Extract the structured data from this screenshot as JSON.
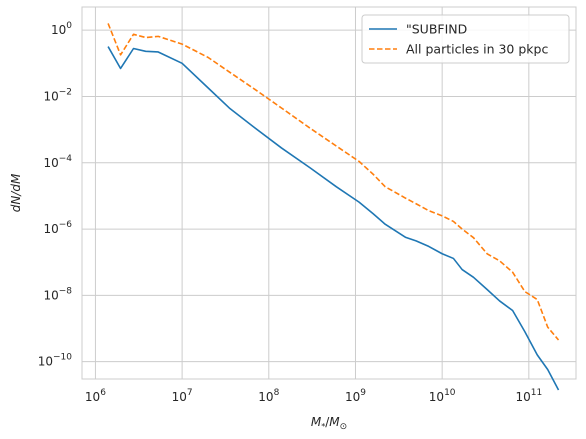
{
  "chart_data": {
    "type": "line",
    "xlabel": "M_*/M_⊙",
    "ylabel": "dN/dM",
    "x_scale": "log",
    "y_scale": "log",
    "xlim": [
      700000,
      350000000000
    ],
    "ylim": [
      3e-11,
      5
    ],
    "grid": true,
    "legend_position": "top-right",
    "x_ticks": [
      {
        "value": 1000000,
        "base": "10",
        "exp": "6"
      },
      {
        "value": 10000000,
        "base": "10",
        "exp": "7"
      },
      {
        "value": 100000000,
        "base": "10",
        "exp": "8"
      },
      {
        "value": 1000000000,
        "base": "10",
        "exp": "9"
      },
      {
        "value": 10000000000,
        "base": "10",
        "exp": "10"
      },
      {
        "value": 100000000000,
        "base": "10",
        "exp": "11"
      }
    ],
    "y_ticks": [
      {
        "value": 1,
        "base": "10",
        "exp": "0"
      },
      {
        "value": 0.01,
        "base": "10",
        "exp": "−2"
      },
      {
        "value": 0.0001,
        "base": "10",
        "exp": "−4"
      },
      {
        "value": 1e-06,
        "base": "10",
        "exp": "−6"
      },
      {
        "value": 1e-08,
        "base": "10",
        "exp": "−8"
      },
      {
        "value": 1e-10,
        "base": "10",
        "exp": "−10"
      }
    ],
    "series": [
      {
        "name": "\"SUBFIND",
        "color": "#1f77b4",
        "style": "solid",
        "points": [
          [
            1400000,
            0.32
          ],
          [
            1950000,
            0.07
          ],
          [
            2750000,
            0.28
          ],
          [
            3800000,
            0.23
          ],
          [
            5300000,
            0.22
          ],
          [
            10000000,
            0.1
          ],
          [
            20000000,
            0.018
          ],
          [
            35000000,
            0.0045
          ],
          [
            70000000,
            0.0011
          ],
          [
            140000000,
            0.00028
          ],
          [
            300000000,
            7e-05
          ],
          [
            600000000,
            1.9e-05
          ],
          [
            1100000000,
            6.5e-06
          ],
          [
            1600000000,
            2.9e-06
          ],
          [
            2200000000,
            1.4e-06
          ],
          [
            3800000000,
            5.6e-07
          ],
          [
            5000000000,
            4.4e-07
          ],
          [
            7000000000,
            3e-07
          ],
          [
            10000000000,
            1.8e-07
          ],
          [
            13500000000,
            1.3e-07
          ],
          [
            17000000000,
            6e-08
          ],
          [
            23000000000,
            3.5e-08
          ],
          [
            33000000000,
            1.5e-08
          ],
          [
            46000000000,
            6.8e-09
          ],
          [
            65000000000,
            3.5e-09
          ],
          [
            90000000000,
            8e-10
          ],
          [
            125000000000,
            1.6e-10
          ],
          [
            165000000000,
            5.8e-11
          ],
          [
            220000000000,
            1.4e-11
          ]
        ]
      },
      {
        "name": "All particles in 30 pkpc",
        "color": "#ff7f0e",
        "style": "dashed",
        "points": [
          [
            1400000,
            1.6
          ],
          [
            1950000,
            0.18
          ],
          [
            2750000,
            0.75
          ],
          [
            3800000,
            0.6
          ],
          [
            5300000,
            0.65
          ],
          [
            10000000,
            0.38
          ],
          [
            20000000,
            0.15
          ],
          [
            35000000,
            0.055
          ],
          [
            70000000,
            0.016
          ],
          [
            140000000,
            0.0045
          ],
          [
            300000000,
            0.0011
          ],
          [
            600000000,
            0.00032
          ],
          [
            1100000000,
            0.00011
          ],
          [
            1600000000,
            4.5e-05
          ],
          [
            2200000000,
            1.9e-05
          ],
          [
            3800000000,
            8.5e-06
          ],
          [
            5000000000,
            5.8e-06
          ],
          [
            7000000000,
            3.6e-06
          ],
          [
            10000000000,
            2.5e-06
          ],
          [
            13500000000,
            1.7e-06
          ],
          [
            17000000000,
            1e-06
          ],
          [
            23000000000,
            5.5e-07
          ],
          [
            33000000000,
            1.8e-07
          ],
          [
            46000000000,
            1.1e-07
          ],
          [
            65000000000,
            5e-08
          ],
          [
            90000000000,
            1.3e-08
          ],
          [
            125000000000,
            7.5e-09
          ],
          [
            165000000000,
            1.1e-09
          ],
          [
            220000000000,
            4.5e-10
          ]
        ]
      }
    ]
  }
}
